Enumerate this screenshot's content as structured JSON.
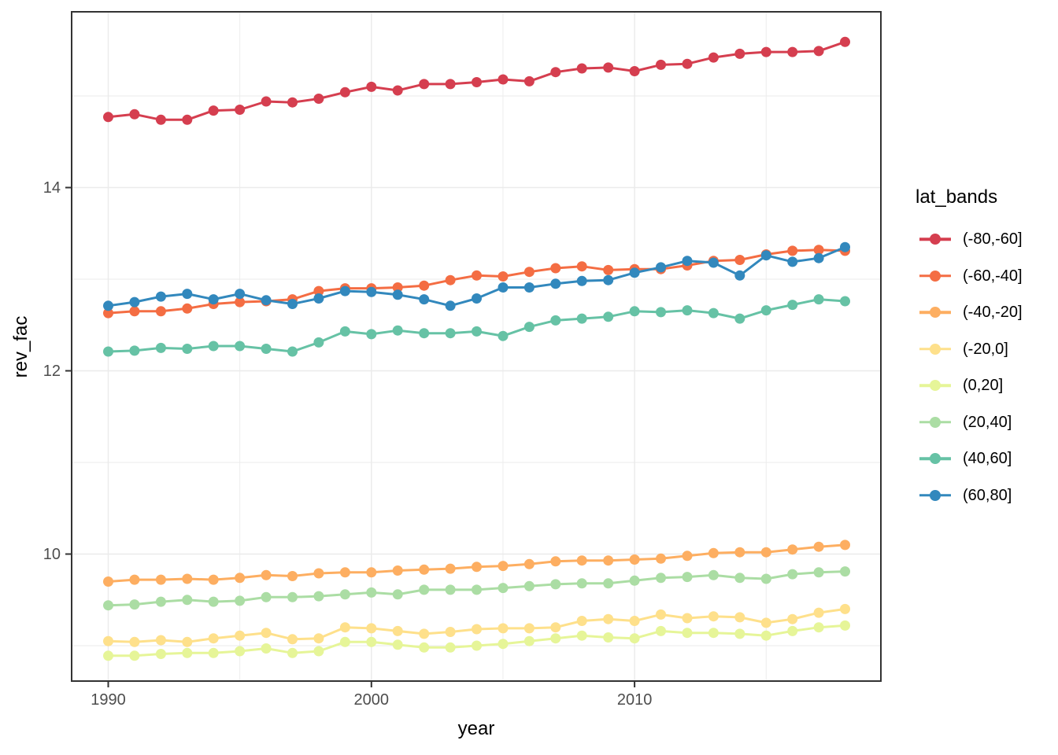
{
  "legend": {
    "title": "lat_bands"
  },
  "style": {
    "background": "#ffffff",
    "panel_border_color": "#333333",
    "grid_color": "#ebebeb",
    "tick_mark_color": "#333333",
    "tick_label_color": "#4d4d4d",
    "point_radius": 6.5,
    "line_width": 3
  },
  "chart_data": {
    "type": "line",
    "title": "",
    "xlabel": "year",
    "ylabel": "rev_fac",
    "legend_title": "lat_bands",
    "legend_position": "right",
    "grid": true,
    "x_ticks": [
      1990,
      2000,
      2010
    ],
    "x_minor_ticks": [
      1995,
      2005,
      2015
    ],
    "y_ticks": [
      10,
      12,
      14
    ],
    "y_minor_ticks": [
      9,
      11,
      13,
      15
    ],
    "xlim": [
      1988.6,
      2019.4
    ],
    "ylim": [
      8.6,
      15.95
    ],
    "x": [
      1990,
      1991,
      1992,
      1993,
      1994,
      1995,
      1996,
      1997,
      1998,
      1999,
      2000,
      2001,
      2002,
      2003,
      2004,
      2005,
      2006,
      2007,
      2008,
      2009,
      2010,
      2011,
      2012,
      2013,
      2014,
      2015,
      2016,
      2017,
      2018
    ],
    "series": [
      {
        "name": "(-80,-60]",
        "color": "#d53e4f",
        "values": [
          14.77,
          14.8,
          14.74,
          14.74,
          14.84,
          14.85,
          14.94,
          14.93,
          14.97,
          15.04,
          15.1,
          15.06,
          15.13,
          15.13,
          15.15,
          15.18,
          15.16,
          15.26,
          15.3,
          15.31,
          15.27,
          15.34,
          15.35,
          15.42,
          15.46,
          15.48,
          15.48,
          15.49,
          15.59
        ]
      },
      {
        "name": "(-60,-40]",
        "color": "#f46d43",
        "values": [
          12.63,
          12.65,
          12.65,
          12.68,
          12.73,
          12.75,
          12.76,
          12.78,
          12.87,
          12.9,
          12.9,
          12.91,
          12.93,
          12.99,
          13.04,
          13.03,
          13.08,
          13.12,
          13.14,
          13.1,
          13.11,
          13.11,
          13.15,
          13.2,
          13.21,
          13.27,
          13.31,
          13.32,
          13.31
        ]
      },
      {
        "name": "(-40,-20]",
        "color": "#fdae61",
        "values": [
          9.7,
          9.72,
          9.72,
          9.73,
          9.72,
          9.74,
          9.77,
          9.76,
          9.79,
          9.8,
          9.8,
          9.82,
          9.83,
          9.84,
          9.86,
          9.87,
          9.89,
          9.92,
          9.93,
          9.93,
          9.94,
          9.95,
          9.98,
          10.01,
          10.02,
          10.02,
          10.05,
          10.08,
          10.1
        ]
      },
      {
        "name": "(-20,0]",
        "color": "#fee08b",
        "values": [
          9.05,
          9.04,
          9.06,
          9.04,
          9.08,
          9.11,
          9.14,
          9.07,
          9.08,
          9.2,
          9.19,
          9.16,
          9.13,
          9.15,
          9.18,
          9.19,
          9.19,
          9.2,
          9.27,
          9.29,
          9.27,
          9.34,
          9.3,
          9.32,
          9.31,
          9.25,
          9.29,
          9.36,
          9.4
        ]
      },
      {
        "name": "(0,20]",
        "color": "#e6f598",
        "values": [
          8.89,
          8.89,
          8.91,
          8.92,
          8.92,
          8.94,
          8.97,
          8.92,
          8.94,
          9.04,
          9.04,
          9.01,
          8.98,
          8.98,
          9.0,
          9.02,
          9.05,
          9.08,
          9.11,
          9.09,
          9.08,
          9.16,
          9.14,
          9.14,
          9.13,
          9.11,
          9.16,
          9.2,
          9.22
        ]
      },
      {
        "name": "(20,40]",
        "color": "#abdda4",
        "values": [
          9.44,
          9.45,
          9.48,
          9.5,
          9.48,
          9.49,
          9.53,
          9.53,
          9.54,
          9.56,
          9.58,
          9.56,
          9.61,
          9.61,
          9.61,
          9.63,
          9.65,
          9.67,
          9.68,
          9.68,
          9.71,
          9.74,
          9.75,
          9.77,
          9.74,
          9.73,
          9.78,
          9.8,
          9.81
        ]
      },
      {
        "name": "(40,60]",
        "color": "#66c2a5",
        "values": [
          12.21,
          12.22,
          12.25,
          12.24,
          12.27,
          12.27,
          12.24,
          12.21,
          12.31,
          12.43,
          12.4,
          12.44,
          12.41,
          12.41,
          12.43,
          12.38,
          12.48,
          12.55,
          12.57,
          12.59,
          12.65,
          12.64,
          12.66,
          12.63,
          12.57,
          12.66,
          12.72,
          12.78,
          12.76
        ]
      },
      {
        "name": "(60,80]",
        "color": "#3288bd",
        "values": [
          12.71,
          12.75,
          12.81,
          12.84,
          12.78,
          12.84,
          12.77,
          12.73,
          12.79,
          12.87,
          12.86,
          12.83,
          12.78,
          12.71,
          12.79,
          12.91,
          12.91,
          12.95,
          12.98,
          12.99,
          13.07,
          13.13,
          13.2,
          13.18,
          13.04,
          13.26,
          13.19,
          13.23,
          13.35
        ]
      }
    ]
  }
}
